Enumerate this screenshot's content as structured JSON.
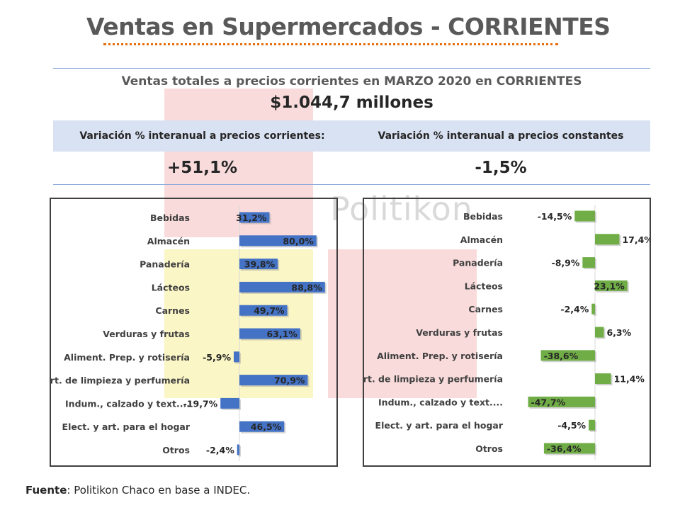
{
  "header": {
    "title": "Ventas en Supermercados - CORRIENTES"
  },
  "watermark": {
    "text": "Politikon"
  },
  "summary": {
    "subtitle": "Ventas totales a precios corrientes en MARZO 2020 en CORRIENTES",
    "total": "$1.044,7 millones",
    "left_header": "Variación % interanual a precios corrientes:",
    "right_header": "Variación % interanual a precios constantes",
    "left_value": "+51,1%",
    "right_value": "-1,5%"
  },
  "footer": {
    "label": "Fuente",
    "text": ": Politikon Chaco en base a INDEC."
  },
  "chart_data": [
    {
      "type": "bar",
      "orientation": "horizontal",
      "categories": [
        "Bebidas",
        "Almacén",
        "Panadería",
        "Lácteos",
        "Carnes",
        "Verduras y frutas",
        "Aliment. Prep. y rotisería",
        "Art. de limpieza y perfumería",
        "Indum., calzado y text....",
        "Elect. y art. para el hogar",
        "Otros"
      ],
      "values": [
        31.2,
        80.0,
        39.8,
        88.8,
        49.7,
        63.1,
        -5.9,
        70.9,
        -19.7,
        46.5,
        -2.4
      ],
      "labels": [
        "31,2%",
        "80,0%",
        "39,8%",
        "88,8%",
        "49,7%",
        "63,1%",
        "-5,9%",
        "70,9%",
        "-19,7%",
        "46,5%",
        "-2,4%"
      ],
      "color": "#4472c4",
      "xlim": [
        -20,
        90
      ]
    },
    {
      "type": "bar",
      "orientation": "horizontal",
      "categories": [
        "Bebidas",
        "Almacén",
        "Panadería",
        "Lácteos",
        "Carnes",
        "Verduras y frutas",
        "Aliment. Prep. y rotisería",
        "Art. de limpieza y perfumería",
        "Indum., calzado y text....",
        "Elect. y art. para el hogar",
        "Otros"
      ],
      "values": [
        -14.5,
        17.4,
        -8.9,
        23.1,
        -2.4,
        6.3,
        -38.6,
        11.4,
        -47.7,
        -4.5,
        -36.4
      ],
      "labels": [
        "-14,5%",
        "17,4%",
        "-8,9%",
        "23,1%",
        "-2,4%",
        "6,3%",
        "-38,6%",
        "11,4%",
        "-47,7%",
        "-4,5%",
        "-36,4%"
      ],
      "color": "#70ad47",
      "xlim": [
        -48,
        24
      ]
    }
  ]
}
